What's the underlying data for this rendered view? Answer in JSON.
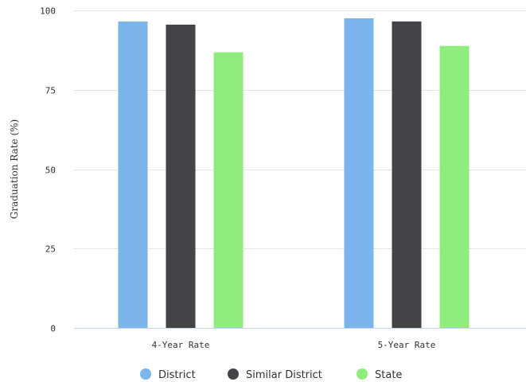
{
  "chart_data": {
    "type": "bar",
    "title": "",
    "xlabel": "",
    "ylabel": "Graduation Rate (%)",
    "ylim": [
      0,
      100
    ],
    "yticks": [
      0,
      25,
      50,
      75,
      100
    ],
    "grid": true,
    "legend_position": "bottom",
    "categories": [
      "4-Year Rate",
      "5-Year Rate"
    ],
    "series": [
      {
        "name": "District",
        "color": "#7cb5ec",
        "values": [
          96.5,
          97.5
        ]
      },
      {
        "name": "Similar District",
        "color": "#434348",
        "values": [
          95.5,
          96.5
        ]
      },
      {
        "name": "State",
        "color": "#90ed7d",
        "values": [
          86.8,
          88.8
        ]
      }
    ]
  }
}
